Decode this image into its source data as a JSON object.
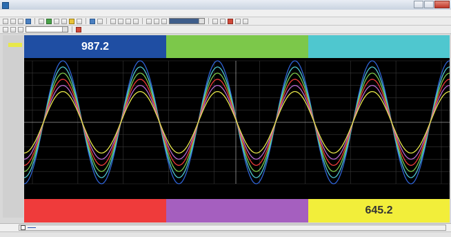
{
  "window": {
    "title": ""
  },
  "menu": [
    "",
    "",
    "",
    "",
    "",
    "",
    "",
    ""
  ],
  "toolbar": {
    "scale_select": "",
    "display_select": ""
  },
  "panels_top": [
    {
      "name": "",
      "value": "987.2",
      "bg": "#1f4ea3",
      "fg": "#ffffff"
    },
    {
      "name": "",
      "value": "",
      "bg": "#7cc84a",
      "fg": "#ffffff"
    },
    {
      "name": "",
      "value": "",
      "bg": "#4fc7cf",
      "fg": "#ffffff"
    }
  ],
  "panels_bottom": [
    {
      "name": "",
      "value": "",
      "bg": "#ef3b3b",
      "fg": "#ffffff"
    },
    {
      "name": "",
      "value": "",
      "bg": "#a55fbf",
      "fg": "#ffffff"
    },
    {
      "name": "",
      "value": "645.2",
      "bg": "#f2ee3a",
      "fg": "#333333"
    }
  ],
  "chart_data": {
    "type": "line",
    "ylim": [
      -1000,
      1000
    ],
    "yticks": [
      "",
      "",
      "",
      "",
      "",
      "",
      "",
      "",
      "",
      "",
      ""
    ],
    "xticks": [
      {
        "time": "",
        "date": ""
      },
      {
        "time": "",
        "date": ""
      },
      {
        "time": "",
        "date": ""
      },
      {
        "time": "",
        "date": ""
      },
      {
        "time": "",
        "date": ""
      },
      {
        "time": "",
        "date": ""
      },
      {
        "time": "",
        "date": ""
      },
      {
        "time": "",
        "date": ""
      },
      {
        "time": "",
        "date": ""
      },
      {
        "time": "",
        "date": ""
      }
    ],
    "cycles": 5.5,
    "series": [
      {
        "amplitude": 1000,
        "color": "#2f63d6"
      },
      {
        "amplitude": 900,
        "color": "#4fc7cf"
      },
      {
        "amplitude": 800,
        "color": "#7cc84a"
      },
      {
        "amplitude": 700,
        "color": "#ef3b3b"
      },
      {
        "amplitude": 600,
        "color": "#b86ad0"
      },
      {
        "amplitude": 500,
        "color": "#e8e84a"
      }
    ],
    "grid_color": "#3a3a3a",
    "cursor_color": "#cfcfcf"
  },
  "legend": {
    "tag_label": ""
  },
  "status": {
    "left": "",
    "mid": "",
    "right": ""
  }
}
